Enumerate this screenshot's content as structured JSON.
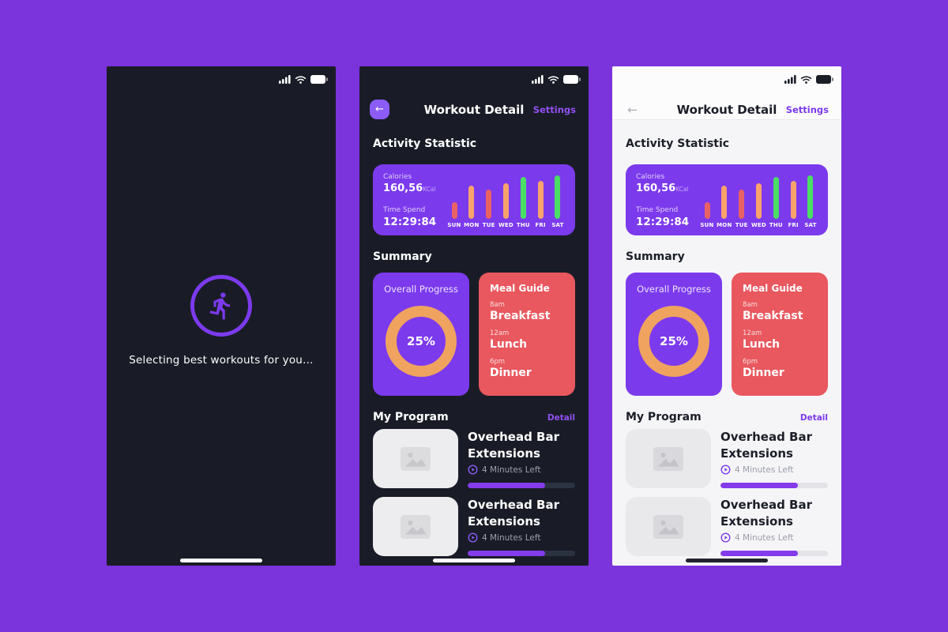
{
  "page": {
    "background": "#7B33DB"
  },
  "status_bar": {
    "signal_icon": "signal-strength-icon",
    "wifi_icon": "wifi-icon",
    "battery_icon": "battery-icon"
  },
  "loading_screen": {
    "runner_icon": "runner-icon",
    "message": "Selecting best workouts for you…"
  },
  "detail_screen": {
    "header": {
      "back_icon": "back-arrow-icon",
      "title": "Workout Detail",
      "settings_label": "Settings"
    },
    "activity": {
      "heading": "Activity Statistic",
      "calories_label": "Calories",
      "calories_value": "160,56",
      "calories_unit": "KCal",
      "time_label": "Time Spend",
      "time_value": "12:29:84"
    },
    "chart_data": {
      "type": "bar",
      "categories": [
        "SUN",
        "MON",
        "TUE",
        "WED",
        "THU",
        "FRI",
        "SAT"
      ],
      "values": [
        36,
        73,
        63,
        77,
        92,
        82,
        95
      ],
      "unit": "relative-height-percent",
      "bar_colors": [
        "#E96263",
        "#F9A26C",
        "#E96263",
        "#F9A26C",
        "#4ADE64",
        "#F9A26C",
        "#4ADE64"
      ],
      "ylim": [
        0,
        100
      ],
      "grid": false,
      "legend": false
    },
    "summary": {
      "heading": "Summary",
      "progress_card": {
        "title": "Overall Progress",
        "percent": 25,
        "percent_label": "25%",
        "ring_color": "#EFA35F"
      },
      "meal_card": {
        "title": "Meal Guide",
        "meals": [
          {
            "time": "8am",
            "name": "Breakfast"
          },
          {
            "time": "12am",
            "name": "Lunch"
          },
          {
            "time": "6pm",
            "name": "Dinner"
          }
        ]
      }
    },
    "program": {
      "heading": "My Program",
      "detail_label": "Detail",
      "items": [
        {
          "title": "Overhead Bar Extensions",
          "time_left": "4 Minutes Left",
          "progress": 72,
          "thumb_icon": "image-placeholder-icon",
          "play_icon": "play-icon"
        },
        {
          "title": "Overhead Bar Extensions",
          "time_left": "4 Minutes Left",
          "progress": 72,
          "thumb_icon": "image-placeholder-icon",
          "play_icon": "play-icon"
        }
      ]
    }
  },
  "colors": {
    "page_bg": "#7B33DB",
    "dark_screen_bg": "#191C26",
    "light_screen_bg": "#F5F5F8",
    "card_purple": "#7C3AED",
    "card_red": "#E8585E",
    "donut_orange": "#EFA35F",
    "bar_red": "#E96263",
    "bar_orange": "#F9A26C",
    "bar_green": "#4ADE64",
    "link_purple": "#8B3DED",
    "progress_fill": "#843BEC"
  }
}
